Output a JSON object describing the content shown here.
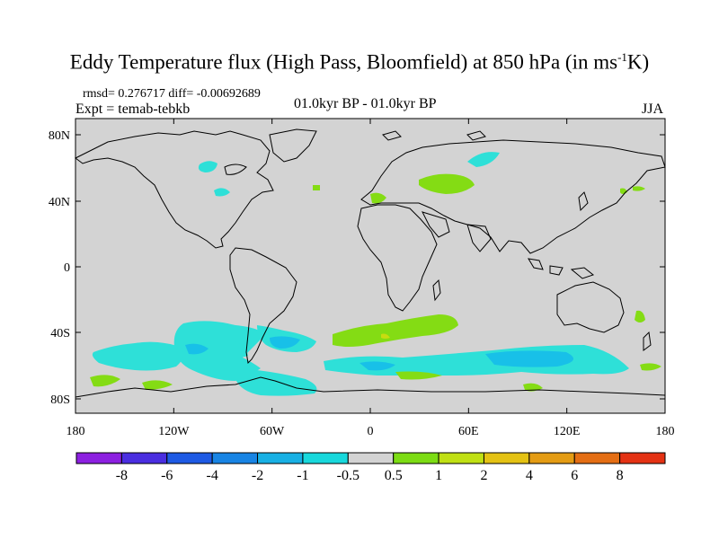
{
  "title": {
    "main": "Eddy Temperature flux (High Pass, Bloomfield) at 850 hPa (in ms",
    "sup": "-1",
    "tail": "K)"
  },
  "stats": "rmsd= 0.276717 diff= -0.00692689",
  "experiment": "Expt = temab-tebkb",
  "period": "01.0kyr BP - 01.0kyr BP",
  "season": "JJA",
  "axes": {
    "lat_ticks": [
      "80N",
      "40N",
      "0",
      "40S",
      "80S"
    ],
    "lon_ticks": [
      "180",
      "120W",
      "60W",
      "0",
      "60E",
      "120E",
      "180"
    ]
  },
  "colors": {
    "ocean_land_bg": "#d3d3d3",
    "neg_fill": "#2ee0d8",
    "neg_fill2": "#18c0e8",
    "pos_fill": "#84dc14",
    "pos_fill2": "#c8dc10"
  },
  "colorbar": {
    "bins": [
      "#8c20e0",
      "#4a2ee0",
      "#1e5ae4",
      "#1884e4",
      "#18b0e4",
      "#18d8dc",
      "#d3d3d3",
      "#7cdc14",
      "#c0e014",
      "#e4c214",
      "#e49c14",
      "#e46e14",
      "#e43214"
    ],
    "labels": [
      "-8",
      "-6",
      "-4",
      "-2",
      "-1",
      "-0.5",
      "0.5",
      "1",
      "2",
      "4",
      "6",
      "8"
    ]
  }
}
